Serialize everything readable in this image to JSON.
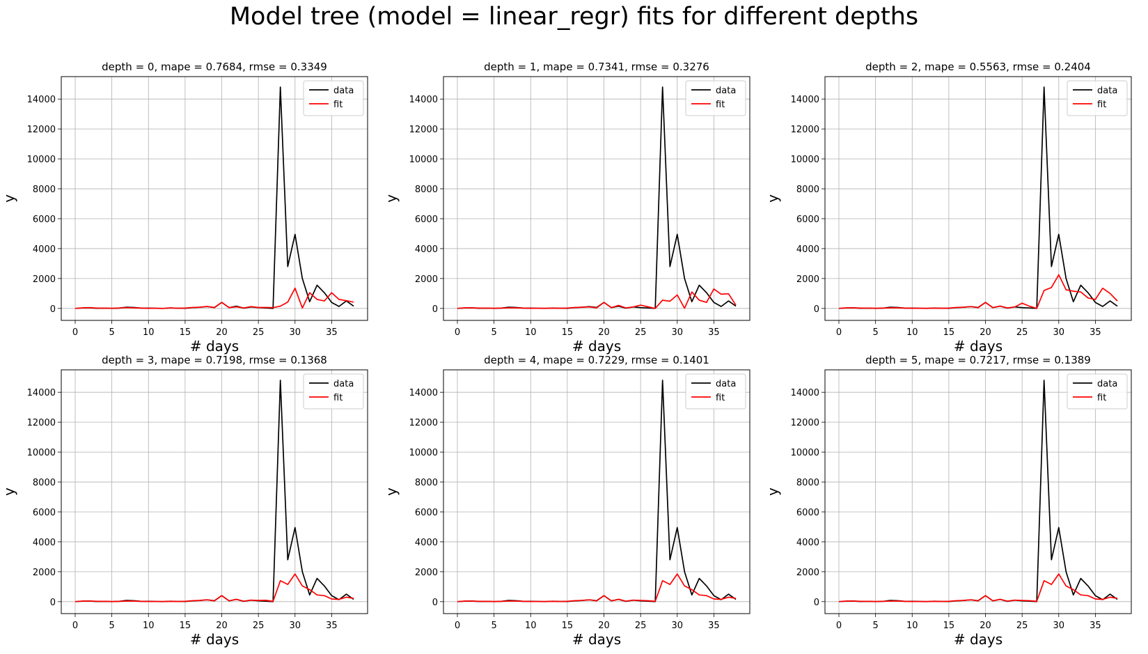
{
  "figure": {
    "title": "Model tree (model = linear_regr) fits for different depths"
  },
  "chart_data": [
    {
      "type": "line",
      "title": "depth = 0, mape = 0.7684, rmse = 0.3349",
      "xlabel": "# days",
      "ylabel": "y",
      "xlim": [
        -1.9,
        39.9
      ],
      "ylim": [
        -800,
        15500
      ],
      "xticks": [
        0,
        5,
        10,
        15,
        20,
        25,
        30,
        35
      ],
      "yticks": [
        0,
        2000,
        4000,
        6000,
        8000,
        10000,
        12000,
        14000
      ],
      "grid": true,
      "legend": "top-right",
      "x": [
        0,
        1,
        2,
        3,
        4,
        5,
        6,
        7,
        8,
        9,
        10,
        11,
        12,
        13,
        14,
        15,
        16,
        17,
        18,
        19,
        20,
        21,
        22,
        23,
        24,
        25,
        26,
        27,
        28,
        29,
        30,
        31,
        32,
        33,
        34,
        35,
        36,
        37,
        38
      ],
      "series": [
        {
          "name": "data",
          "color": "#000000",
          "values": [
            0,
            30,
            40,
            10,
            20,
            0,
            20,
            80,
            60,
            20,
            20,
            10,
            0,
            30,
            10,
            10,
            50,
            80,
            120,
            60,
            400,
            50,
            150,
            20,
            100,
            50,
            30,
            0,
            14800,
            2800,
            4950,
            2000,
            450,
            1550,
            1050,
            400,
            130,
            500,
            150
          ]
        },
        {
          "name": "fit",
          "color": "#ff0000",
          "values": [
            0,
            40,
            50,
            20,
            20,
            10,
            30,
            50,
            40,
            20,
            10,
            10,
            0,
            40,
            10,
            20,
            60,
            80,
            130,
            50,
            400,
            50,
            110,
            30,
            120,
            60,
            60,
            50,
            150,
            420,
            1350,
            30,
            1050,
            600,
            500,
            1050,
            600,
            520,
            420
          ]
        }
      ]
    },
    {
      "type": "line",
      "title": "depth = 1, mape = 0.7341, rmse = 0.3276",
      "xlabel": "# days",
      "ylabel": "y",
      "xlim": [
        -1.9,
        39.9
      ],
      "ylim": [
        -800,
        15500
      ],
      "xticks": [
        0,
        5,
        10,
        15,
        20,
        25,
        30,
        35
      ],
      "yticks": [
        0,
        2000,
        4000,
        6000,
        8000,
        10000,
        12000,
        14000
      ],
      "grid": true,
      "legend": "top-right",
      "x": [
        0,
        1,
        2,
        3,
        4,
        5,
        6,
        7,
        8,
        9,
        10,
        11,
        12,
        13,
        14,
        15,
        16,
        17,
        18,
        19,
        20,
        21,
        22,
        23,
        24,
        25,
        26,
        27,
        28,
        29,
        30,
        31,
        32,
        33,
        34,
        35,
        36,
        37,
        38
      ],
      "series": [
        {
          "name": "data",
          "color": "#000000",
          "values": [
            0,
            30,
            40,
            10,
            20,
            0,
            20,
            80,
            60,
            20,
            20,
            10,
            0,
            30,
            10,
            10,
            50,
            80,
            120,
            60,
            400,
            50,
            150,
            20,
            100,
            50,
            30,
            0,
            14800,
            2800,
            4950,
            2000,
            450,
            1550,
            1050,
            400,
            130,
            500,
            150
          ]
        },
        {
          "name": "fit",
          "color": "#ff0000",
          "values": [
            0,
            40,
            40,
            20,
            20,
            10,
            20,
            40,
            40,
            20,
            10,
            10,
            10,
            20,
            10,
            20,
            60,
            80,
            100,
            40,
            400,
            50,
            200,
            30,
            100,
            220,
            110,
            0,
            550,
            480,
            900,
            10,
            1100,
            550,
            400,
            1300,
            950,
            980,
            220
          ]
        }
      ]
    },
    {
      "type": "line",
      "title": "depth = 2, mape = 0.5563, rmse = 0.2404",
      "xlabel": "# days",
      "ylabel": "y",
      "xlim": [
        -1.9,
        39.9
      ],
      "ylim": [
        -800,
        15500
      ],
      "xticks": [
        0,
        5,
        10,
        15,
        20,
        25,
        30,
        35
      ],
      "yticks": [
        0,
        2000,
        4000,
        6000,
        8000,
        10000,
        12000,
        14000
      ],
      "grid": true,
      "legend": "top-right",
      "x": [
        0,
        1,
        2,
        3,
        4,
        5,
        6,
        7,
        8,
        9,
        10,
        11,
        12,
        13,
        14,
        15,
        16,
        17,
        18,
        19,
        20,
        21,
        22,
        23,
        24,
        25,
        26,
        27,
        28,
        29,
        30,
        31,
        32,
        33,
        34,
        35,
        36,
        37,
        38
      ],
      "series": [
        {
          "name": "data",
          "color": "#000000",
          "values": [
            0,
            30,
            40,
            10,
            20,
            0,
            20,
            80,
            60,
            20,
            20,
            10,
            0,
            30,
            10,
            10,
            50,
            80,
            120,
            60,
            400,
            50,
            150,
            20,
            100,
            50,
            30,
            0,
            14800,
            2800,
            4950,
            2000,
            450,
            1550,
            1050,
            400,
            130,
            500,
            150
          ]
        },
        {
          "name": "fit",
          "color": "#ff0000",
          "values": [
            0,
            40,
            40,
            20,
            20,
            10,
            20,
            40,
            40,
            20,
            10,
            10,
            10,
            20,
            10,
            20,
            60,
            80,
            120,
            50,
            400,
            50,
            160,
            30,
            100,
            350,
            150,
            0,
            1200,
            1400,
            2250,
            1250,
            1150,
            1100,
            700,
            600,
            1350,
            1000,
            500
          ]
        }
      ]
    },
    {
      "type": "line",
      "title": "depth = 3, mape = 0.7198, rmse = 0.1368",
      "xlabel": "# days",
      "ylabel": "y",
      "xlim": [
        -1.9,
        39.9
      ],
      "ylim": [
        -800,
        15500
      ],
      "xticks": [
        0,
        5,
        10,
        15,
        20,
        25,
        30,
        35
      ],
      "yticks": [
        0,
        2000,
        4000,
        6000,
        8000,
        10000,
        12000,
        14000
      ],
      "grid": true,
      "legend": "top-right",
      "x": [
        0,
        1,
        2,
        3,
        4,
        5,
        6,
        7,
        8,
        9,
        10,
        11,
        12,
        13,
        14,
        15,
        16,
        17,
        18,
        19,
        20,
        21,
        22,
        23,
        24,
        25,
        26,
        27,
        28,
        29,
        30,
        31,
        32,
        33,
        34,
        35,
        36,
        37,
        38
      ],
      "series": [
        {
          "name": "data",
          "color": "#000000",
          "values": [
            0,
            30,
            40,
            10,
            20,
            0,
            20,
            80,
            60,
            20,
            20,
            10,
            0,
            30,
            10,
            10,
            50,
            80,
            120,
            60,
            400,
            50,
            150,
            20,
            100,
            50,
            30,
            0,
            14800,
            2800,
            4950,
            2000,
            450,
            1550,
            1050,
            400,
            130,
            500,
            150
          ]
        },
        {
          "name": "fit",
          "color": "#ff0000",
          "values": [
            0,
            40,
            40,
            20,
            20,
            10,
            20,
            40,
            40,
            20,
            10,
            10,
            10,
            20,
            10,
            20,
            60,
            80,
            120,
            50,
            400,
            50,
            160,
            30,
            100,
            80,
            90,
            20,
            1400,
            1150,
            1850,
            1050,
            800,
            450,
            400,
            180,
            150,
            300,
            220
          ]
        }
      ]
    },
    {
      "type": "line",
      "title": "depth = 4, mape = 0.7229, rmse = 0.1401",
      "xlabel": "# days",
      "ylabel": "y",
      "xlim": [
        -1.9,
        39.9
      ],
      "ylim": [
        -800,
        15500
      ],
      "xticks": [
        0,
        5,
        10,
        15,
        20,
        25,
        30,
        35
      ],
      "yticks": [
        0,
        2000,
        4000,
        6000,
        8000,
        10000,
        12000,
        14000
      ],
      "grid": true,
      "legend": "top-right",
      "x": [
        0,
        1,
        2,
        3,
        4,
        5,
        6,
        7,
        8,
        9,
        10,
        11,
        12,
        13,
        14,
        15,
        16,
        17,
        18,
        19,
        20,
        21,
        22,
        23,
        24,
        25,
        26,
        27,
        28,
        29,
        30,
        31,
        32,
        33,
        34,
        35,
        36,
        37,
        38
      ],
      "series": [
        {
          "name": "data",
          "color": "#000000",
          "values": [
            0,
            30,
            40,
            10,
            20,
            0,
            20,
            80,
            60,
            20,
            20,
            10,
            0,
            30,
            10,
            10,
            50,
            80,
            120,
            60,
            400,
            50,
            150,
            20,
            100,
            50,
            30,
            0,
            14800,
            2800,
            4950,
            2000,
            450,
            1550,
            1050,
            400,
            130,
            500,
            150
          ]
        },
        {
          "name": "fit",
          "color": "#ff0000",
          "values": [
            0,
            40,
            40,
            20,
            20,
            10,
            20,
            40,
            40,
            20,
            10,
            10,
            10,
            20,
            10,
            20,
            60,
            80,
            120,
            50,
            400,
            50,
            160,
            30,
            100,
            80,
            60,
            20,
            1400,
            1150,
            1850,
            1050,
            800,
            450,
            400,
            180,
            150,
            300,
            220
          ]
        }
      ]
    },
    {
      "type": "line",
      "title": "depth = 5, mape = 0.7217, rmse = 0.1389",
      "xlabel": "# days",
      "ylabel": "y",
      "xlim": [
        -1.9,
        39.9
      ],
      "ylim": [
        -800,
        15500
      ],
      "xticks": [
        0,
        5,
        10,
        15,
        20,
        25,
        30,
        35
      ],
      "yticks": [
        0,
        2000,
        4000,
        6000,
        8000,
        10000,
        12000,
        14000
      ],
      "grid": true,
      "legend": "top-right",
      "x": [
        0,
        1,
        2,
        3,
        4,
        5,
        6,
        7,
        8,
        9,
        10,
        11,
        12,
        13,
        14,
        15,
        16,
        17,
        18,
        19,
        20,
        21,
        22,
        23,
        24,
        25,
        26,
        27,
        28,
        29,
        30,
        31,
        32,
        33,
        34,
        35,
        36,
        37,
        38
      ],
      "series": [
        {
          "name": "data",
          "color": "#000000",
          "values": [
            0,
            30,
            40,
            10,
            20,
            0,
            20,
            80,
            60,
            20,
            20,
            10,
            0,
            30,
            10,
            10,
            50,
            80,
            120,
            60,
            400,
            50,
            150,
            20,
            100,
            50,
            30,
            0,
            14800,
            2800,
            4950,
            2000,
            450,
            1550,
            1050,
            400,
            130,
            500,
            150
          ]
        },
        {
          "name": "fit",
          "color": "#ff0000",
          "values": [
            0,
            40,
            40,
            20,
            20,
            10,
            20,
            40,
            40,
            20,
            10,
            10,
            10,
            20,
            10,
            20,
            60,
            80,
            120,
            50,
            400,
            50,
            160,
            30,
            100,
            80,
            60,
            20,
            1400,
            1150,
            1850,
            1050,
            800,
            450,
            400,
            180,
            150,
            300,
            220
          ]
        }
      ]
    }
  ]
}
